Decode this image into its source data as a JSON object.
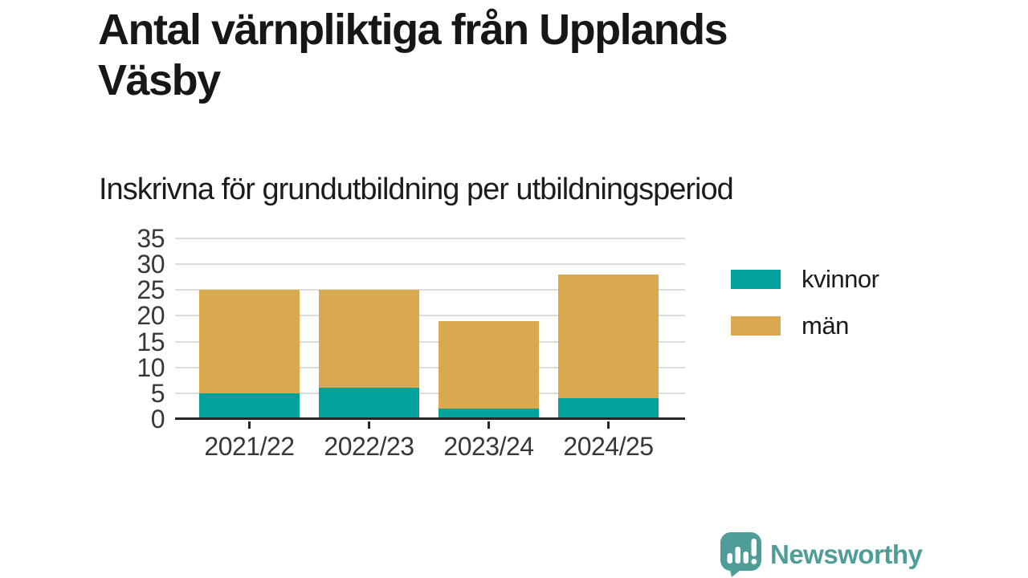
{
  "header": {
    "title": "Antal värnpliktiga från Upplands\nVäsby",
    "subtitle": "Inskrivna för grundutbildning per utbildningsperiod"
  },
  "colors": {
    "kvinnor": "#00a29a",
    "man": "#d9a950",
    "axis": "#262626",
    "grid": "#dcdcdc",
    "title_text": "#171717",
    "axis_text": "#383838",
    "brand": "#4f9d98",
    "background": "#ffffff"
  },
  "chart_data": {
    "type": "bar",
    "stacked": true,
    "title": "Antal värnpliktiga från Upplands Väsby",
    "subtitle": "Inskrivna för grundutbildning per utbildningsperiod",
    "categories": [
      "2021/22",
      "2022/23",
      "2023/24",
      "2024/25"
    ],
    "series": [
      {
        "name": "kvinnor",
        "color": "#00a29a",
        "values": [
          5,
          6,
          2,
          4
        ]
      },
      {
        "name": "män",
        "color": "#d9a950",
        "values": [
          20,
          19,
          17,
          24
        ]
      }
    ],
    "totals": [
      25,
      25,
      19,
      28
    ],
    "xlabel": "",
    "ylabel": "",
    "ylim": [
      0,
      35
    ],
    "yticks": [
      0,
      5,
      10,
      15,
      20,
      25,
      30,
      35
    ],
    "grid": true,
    "legend_position": "right"
  },
  "legend": {
    "items": [
      {
        "label": "kvinnor",
        "color": "#00a29a"
      },
      {
        "label": "män",
        "color": "#d9a950"
      }
    ]
  },
  "footer": {
    "brand": "Newsworthy"
  }
}
